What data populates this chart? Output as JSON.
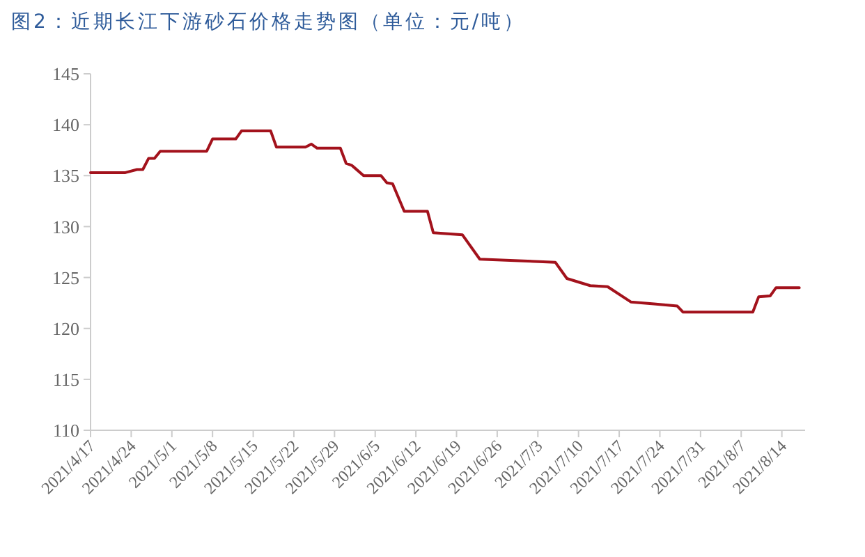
{
  "chart_data": {
    "type": "line",
    "title": "图2：近期长江下游砂石价格走势图（单位：元/吨）",
    "series": [
      {
        "color": "#a3121c",
        "x": [
          "2021-04-17",
          "2021-04-23",
          "2021-04-25",
          "2021-04-26",
          "2021-04-27",
          "2021-04-28",
          "2021-04-29",
          "2021-05-07",
          "2021-05-08",
          "2021-05-12",
          "2021-05-13",
          "2021-05-18",
          "2021-05-19",
          "2021-05-24",
          "2021-05-25",
          "2021-05-26",
          "2021-05-30",
          "2021-05-31",
          "2021-06-01",
          "2021-06-03",
          "2021-06-06",
          "2021-06-07",
          "2021-06-08",
          "2021-06-10",
          "2021-06-14",
          "2021-06-15",
          "2021-06-20",
          "2021-06-23",
          "2021-07-06",
          "2021-07-08",
          "2021-07-12",
          "2021-07-15",
          "2021-07-19",
          "2021-07-23",
          "2021-07-27",
          "2021-07-28",
          "2021-08-09",
          "2021-08-10",
          "2021-08-12",
          "2021-08-13",
          "2021-08-17"
        ],
        "values": [
          135.3,
          135.3,
          135.6,
          135.6,
          136.7,
          136.7,
          137.4,
          137.4,
          138.6,
          138.6,
          139.4,
          139.4,
          137.8,
          137.8,
          138.1,
          137.7,
          137.7,
          136.2,
          136,
          135,
          135,
          134.3,
          134.2,
          131.5,
          131.5,
          129.4,
          129.2,
          126.8,
          126.5,
          124.9,
          124.2,
          124.1,
          122.6,
          122.4,
          122.2,
          121.6,
          121.6,
          123.1,
          123.2,
          124,
          124
        ]
      }
    ],
    "xlim": [
      "2021-04-17",
      "2021-08-18"
    ],
    "xticks": [
      {
        "value": "2021-04-17",
        "label": "2021/4/17"
      },
      {
        "value": "2021-04-24",
        "label": "2021/4/24"
      },
      {
        "value": "2021-05-01",
        "label": "2021/5/1"
      },
      {
        "value": "2021-05-08",
        "label": "2021/5/8"
      },
      {
        "value": "2021-05-15",
        "label": "2021/5/15"
      },
      {
        "value": "2021-05-22",
        "label": "2021/5/22"
      },
      {
        "value": "2021-05-29",
        "label": "2021/5/29"
      },
      {
        "value": "2021-06-05",
        "label": "2021/6/5"
      },
      {
        "value": "2021-06-12",
        "label": "2021/6/12"
      },
      {
        "value": "2021-06-19",
        "label": "2021/6/19"
      },
      {
        "value": "2021-06-26",
        "label": "2021/6/26"
      },
      {
        "value": "2021-07-03",
        "label": "2021/7/3"
      },
      {
        "value": "2021-07-10",
        "label": "2021/7/10"
      },
      {
        "value": "2021-07-17",
        "label": "2021/7/17"
      },
      {
        "value": "2021-07-24",
        "label": "2021/7/24"
      },
      {
        "value": "2021-07-31",
        "label": "2021/7/31"
      },
      {
        "value": "2021-08-07",
        "label": "2021/8/7"
      },
      {
        "value": "2021-08-14",
        "label": "2021/8/14"
      }
    ],
    "ylim": [
      110,
      145
    ],
    "yticks": [
      110,
      115,
      120,
      125,
      130,
      135,
      140,
      145
    ],
    "grid": false,
    "marker": "none",
    "line_style": "solid"
  }
}
